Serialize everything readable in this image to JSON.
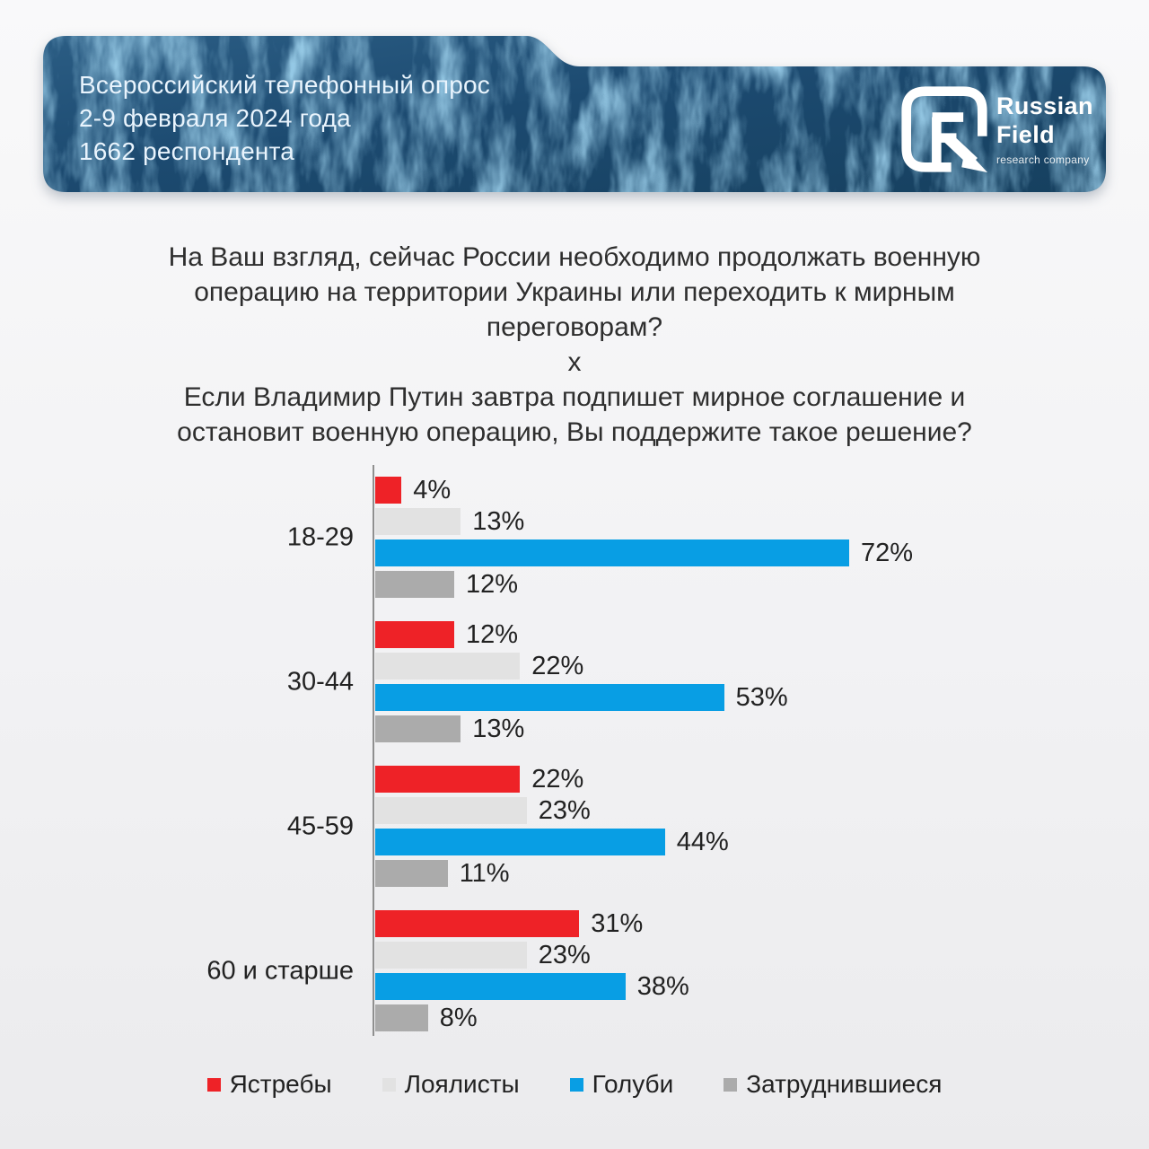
{
  "header": {
    "line1": "Всероссийский телефонный опрос",
    "line2": "2-9 февраля 2024 года",
    "line3": "1662 респондента",
    "logo": {
      "title1": "Russian",
      "title2": "Field",
      "subtitle": "research company"
    }
  },
  "question": {
    "lines": [
      "На Ваш взгляд, сейчас России необходимо продолжать военную",
      "операцию на территории Украины или переходить к мирным",
      "переговорам?",
      "х",
      "Если Владимир Путин завтра подпишет мирное соглашение и",
      "остановит военную операцию, Вы поддержите такое решение?"
    ]
  },
  "chart_data": {
    "type": "bar",
    "orientation": "horizontal",
    "title": "",
    "categories": [
      "18-29",
      "30-44",
      "45-59",
      "60 и старше"
    ],
    "series": [
      {
        "name": "Ястребы",
        "color": "#ee2227",
        "values": [
          4,
          12,
          22,
          31
        ]
      },
      {
        "name": "Лоялисты",
        "color": "#e2e2e2",
        "values": [
          13,
          22,
          23,
          23
        ]
      },
      {
        "name": "Голуби",
        "color": "#089ee4",
        "values": [
          72,
          53,
          44,
          38
        ]
      },
      {
        "name": "Затруднившиеся",
        "color": "#ababab",
        "values": [
          12,
          13,
          11,
          8
        ]
      }
    ],
    "value_suffix": "%",
    "xlim": [
      0,
      75
    ],
    "grid": false,
    "legend_position": "bottom"
  },
  "colors": {
    "banner_base": "#1c4a70",
    "axis": "#8f8f8f",
    "text_dark": "#2e2e2e"
  }
}
